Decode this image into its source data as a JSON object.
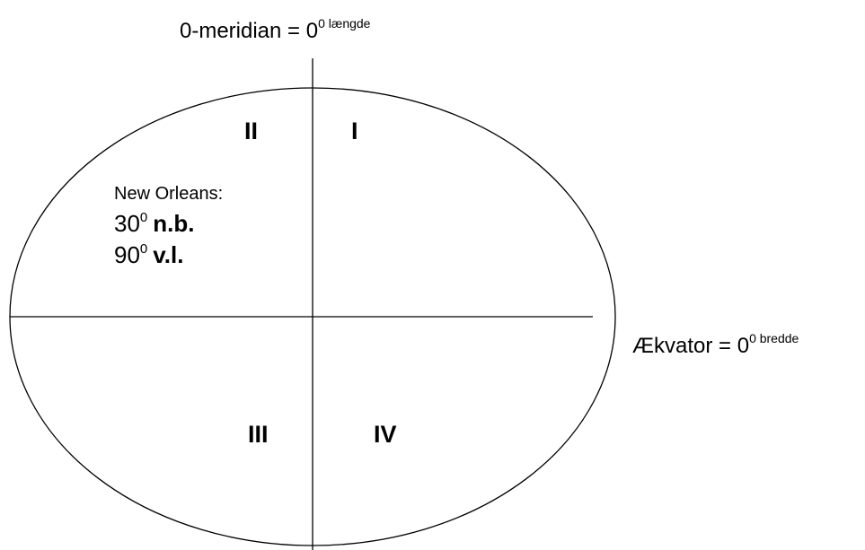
{
  "meridian": {
    "text": "0-meridian = 0",
    "sup": "0 længde"
  },
  "equator": {
    "text": "Ækvator = 0",
    "sup": "0 bredde"
  },
  "quadrants": [
    "I",
    "II",
    "III",
    "IV"
  ],
  "city": {
    "name": "New Orleans:",
    "latitude": {
      "value": "30",
      "sup": "0",
      "unit": "n.b."
    },
    "longitude": {
      "value": "90",
      "sup": "0",
      "unit": "v.l."
    }
  }
}
